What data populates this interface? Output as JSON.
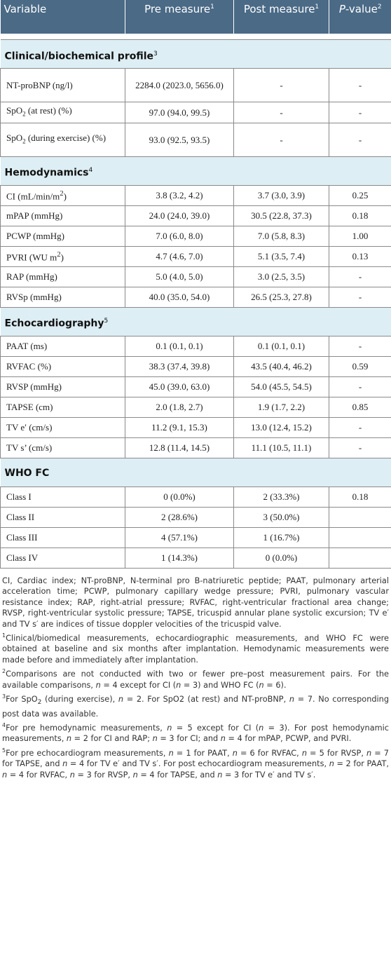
{
  "header": {
    "variable": "Variable",
    "pre": "Pre measure",
    "pre_sup": "1",
    "post": "Post measure",
    "post_sup": "1",
    "p_italic": "P",
    "p_rest": "-value",
    "p_sup": "2"
  },
  "sections": {
    "clinical": {
      "title": "Clinical/biochemical profile",
      "sup": "3"
    },
    "hemo": {
      "title": "Hemodynamics",
      "sup": "4"
    },
    "echo": {
      "title": "Echocardiography",
      "sup": "5"
    },
    "who": {
      "title": "WHO FC",
      "sup": ""
    }
  },
  "rows": {
    "ntprobnp": {
      "label": "NT-proBNP (ng/l)",
      "pre": "2284.0 (2023.0, 5656.0)",
      "post": "-",
      "p": "-"
    },
    "spo2_rest": {
      "label_a": "SpO",
      "label_sub": "2",
      "label_b": " (at rest) (%)",
      "pre": "97.0 (94.0, 99.5)",
      "post": "-",
      "p": "-"
    },
    "spo2_ex": {
      "label_a": "SpO",
      "label_sub": "2",
      "label_b": " (during exercise) (%)",
      "pre": "93.0 (92.5, 93.5)",
      "post": "-",
      "p": "-"
    },
    "ci": {
      "label_a": "CI (mL/min/m",
      "label_sup": "2",
      "label_b": ")",
      "pre": "3.8 (3.2, 4.2)",
      "post": "3.7 (3.0, 3.9)",
      "p": "0.25"
    },
    "mpap": {
      "label": "mPAP (mmHg)",
      "pre": "24.0 (24.0, 39.0)",
      "post": "30.5 (22.8, 37.3)",
      "p": "0.18"
    },
    "pcwp": {
      "label": "PCWP (mmHg)",
      "pre": "7.0 (6.0, 8.0)",
      "post": "7.0 (5.8, 8.3)",
      "p": "1.00"
    },
    "pvri": {
      "label_a": "PVRI (WU m",
      "label_sup": "2",
      "label_b": ")",
      "pre": "4.7 (4.6, 7.0)",
      "post": "5.1 (3.5, 7.4)",
      "p": "0.13"
    },
    "rap": {
      "label": "RAP (mmHg)",
      "pre": "5.0 (4.0, 5.0)",
      "post": "3.0 (2.5, 3.5)",
      "p": "-"
    },
    "rvsp_h": {
      "label": "RVSp (mmHg)",
      "pre": "40.0 (35.0, 54.0)",
      "post": "26.5 (25.3, 27.8)",
      "p": "-"
    },
    "paat": {
      "label": "PAAT (ms)",
      "pre": "0.1 (0.1, 0.1)",
      "post": "0.1 (0.1, 0.1)",
      "p": "-"
    },
    "rvfac": {
      "label": "RVFAC (%)",
      "pre": "38.3 (37.4, 39.8)",
      "post": "43.5 (40.4, 46.2)",
      "p": "0.59"
    },
    "rvsp_e": {
      "label": "RVSP (mmHg)",
      "pre": "45.0 (39.0, 63.0)",
      "post": "54.0 (45.5, 54.5)",
      "p": "-"
    },
    "tapse": {
      "label": "TAPSE (cm)",
      "pre": "2.0 (1.8, 2.7)",
      "post": "1.9 (1.7, 2.2)",
      "p": "0.85"
    },
    "tve": {
      "label": "TV e′ (cm/s)",
      "pre": "11.2 (9.1, 15.3)",
      "post": "13.0 (12.4, 15.2)",
      "p": "-"
    },
    "tvs": {
      "label": "TV s’ (cm/s)",
      "pre": "12.8 (11.4, 14.5)",
      "post": "11.1 (10.5, 11.1)",
      "p": "-"
    },
    "c1": {
      "label": "Class I",
      "pre": "0 (0.0%)",
      "post": "2 (33.3%)",
      "p": "0.18"
    },
    "c2": {
      "label": "Class II",
      "pre": "2 (28.6%)",
      "post": "3 (50.0%)",
      "p": ""
    },
    "c3": {
      "label": "Class III",
      "pre": "4 (57.1%)",
      "post": "1 (16.7%)",
      "p": ""
    },
    "c4": {
      "label": "Class IV",
      "pre": "1 (14.3%)",
      "post": "0 (0.0%)",
      "p": ""
    }
  },
  "footnotes": {
    "abbrev": "CI, Cardiac index; NT-proBNP, N-terminal pro B-natriuretic peptide; PAAT, pulmonary arterial acceleration time; PCWP, pulmonary capillary wedge pressure; PVRI, pulmonary vascular resistance index; RAP, right-atrial pressure; RVFAC, right-ventricular fractional area change; RVSP, right-ventricular systolic pressure; TAPSE, tricuspid annular plane systolic excursion; TV e′ and TV s′ are indices of tissue doppler velocities of the tricuspid valve.",
    "n1_mark": "1",
    "n1": "Clinical/biomedical measurements, echocardiographic measurements, and WHO FC were obtained at baseline and six months after implantation. Hemodynamic measurements were made before and immediately after implantation.",
    "n2_mark": "2",
    "n2_a": "Comparisons are not conducted with two or fewer pre–post measurement pairs. For the available comparisons, ",
    "n2_b": " = 4 except for CI (",
    "n2_c": " = 3) and WHO FC (",
    "n2_d": " = 6).",
    "n3_mark": "3",
    "n3_a": "For SpO",
    "n3_sub": "2",
    "n3_b": " (during exercise), ",
    "n3_c": " = 2. For SpO2 (at rest) and NT-proBNP, ",
    "n3_d": " = 7. No corresponding post data was available.",
    "n4_mark": "4",
    "n4_a": "For pre hemodynamic measurements, ",
    "n4_b": " = 5 except for CI (",
    "n4_c": " = 3). For post hemodynamic measurements, ",
    "n4_d": " = 2 for CI and RAP; ",
    "n4_e": " = 3 for CI; and ",
    "n4_f": " = 4 for mPAP, PCWP, and PVRI.",
    "n5_mark": "5",
    "n5_a": "For pre echocardiogram measurements, ",
    "n5_b": " = 1 for PAAT, ",
    "n5_c": " = 6 for RVFAC, ",
    "n5_d": " = 5 for RVSP, ",
    "n5_e": " = 7 for TAPSE, and ",
    "n5_f": " = 4 for TV e′ and TV s′. For post echocardiogram measurements, ",
    "n5_g": " = 2 for PAAT, ",
    "n5_h": " = 4 for RVFAC, ",
    "n5_i": " = 3 for RVSP, ",
    "n5_j": " = 4 for TAPSE, and ",
    "n5_k": " = 3 for TV e′ and TV s′.",
    "n_symbol": "n"
  }
}
